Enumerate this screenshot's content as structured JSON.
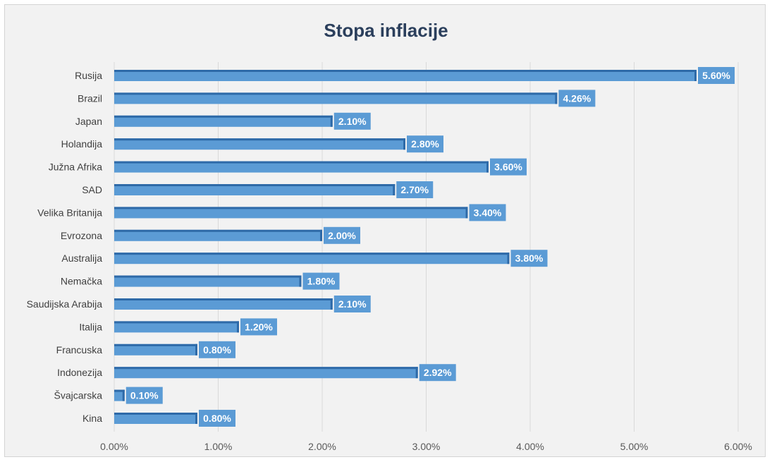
{
  "chart_data": {
    "type": "bar",
    "orientation": "horizontal",
    "title": "Stopa inflacije",
    "categories": [
      "Rusija",
      "Brazil",
      "Japan",
      "Holandija",
      "Južna Afrika",
      "SAD",
      "Velika Britanija",
      "Evrozona",
      "Australija",
      "Nemačka",
      "Saudijska Arabija",
      "Italija",
      "Francuska",
      "Indonezija",
      "Švajcarska",
      "Kina"
    ],
    "values": [
      5.6,
      4.26,
      2.1,
      2.8,
      3.6,
      2.7,
      3.4,
      2.0,
      3.8,
      1.8,
      2.1,
      1.2,
      0.8,
      2.92,
      0.1,
      0.8
    ],
    "data_labels": [
      "5.60%",
      "4.26%",
      "2.10%",
      "2.80%",
      "3.60%",
      "2.70%",
      "3.40%",
      "2.00%",
      "3.80%",
      "1.80%",
      "2.10%",
      "1.20%",
      "0.80%",
      "2.92%",
      "0.10%",
      "0.80%"
    ],
    "xticks": [
      "0.00%",
      "1.00%",
      "2.00%",
      "3.00%",
      "4.00%",
      "5.00%",
      "6.00%"
    ],
    "xlim": [
      0,
      6
    ],
    "grid": true,
    "legend": "none",
    "colors": {
      "bar": "#5b9bd5",
      "bar_dark": "#2e6aa8",
      "label_bg": "#5b9bd5",
      "grid": "#d9d9d9",
      "background": "#f2f2f2"
    }
  }
}
